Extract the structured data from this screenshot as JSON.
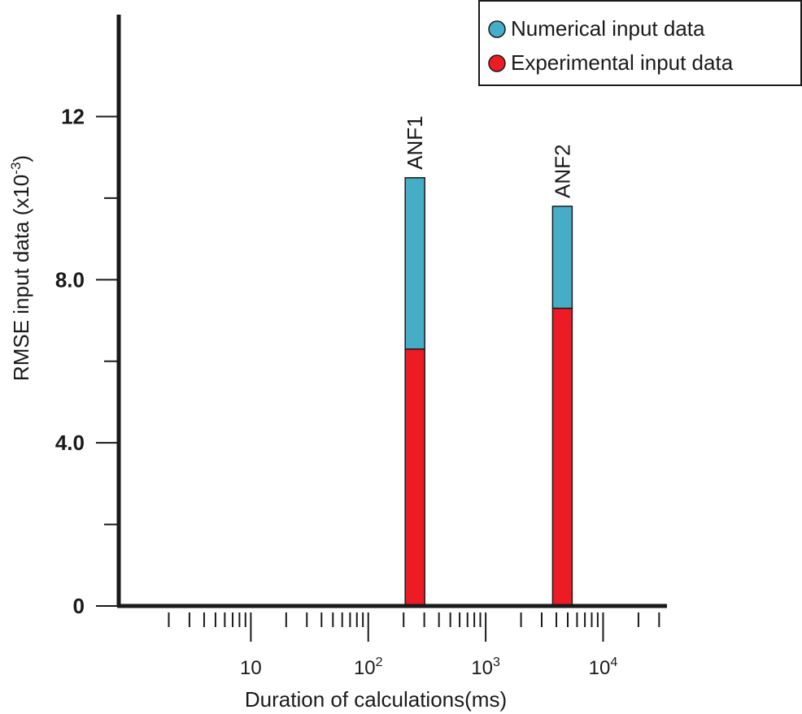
{
  "chart_data": {
    "type": "bar",
    "stacked": true,
    "x_scale": "log",
    "xlabel": "Duration of calculations(ms)",
    "ylabel_main": "RMSE input data (x10",
    "ylabel_exp": "-3",
    "ylabel_close": ")",
    "ylim": [
      0,
      14.5
    ],
    "yticks": [
      0,
      4.0,
      8.0,
      12
    ],
    "ytick_labels": [
      "0",
      "4.0",
      "8.0",
      "12"
    ],
    "y_minor_ticks": [
      2,
      6,
      10
    ],
    "xticks": [
      {
        "value": 10,
        "base": "10",
        "exp": ""
      },
      {
        "value": 100,
        "base": "10",
        "exp": "2"
      },
      {
        "value": 1000,
        "base": "10",
        "exp": "3"
      },
      {
        "value": 10000,
        "base": "10",
        "exp": "4"
      }
    ],
    "xlim": [
      0.75,
      35000
    ],
    "categories": [
      {
        "label": "ANF1",
        "x": 250
      },
      {
        "label": "ANF2",
        "x": 4500
      }
    ],
    "series": [
      {
        "name": "Experimental input data",
        "color": "#ed1c24",
        "values": [
          6.3,
          7.3
        ]
      },
      {
        "name": "Numerical input data",
        "color": "#45aec6",
        "values": [
          4.2,
          2.5
        ]
      }
    ],
    "legend": {
      "position": "top-right",
      "entries": [
        {
          "label": "Numerical input data",
          "color": "#45aec6"
        },
        {
          "label": "Experimental input data",
          "color": "#ed1c24"
        }
      ]
    },
    "grid": false
  }
}
